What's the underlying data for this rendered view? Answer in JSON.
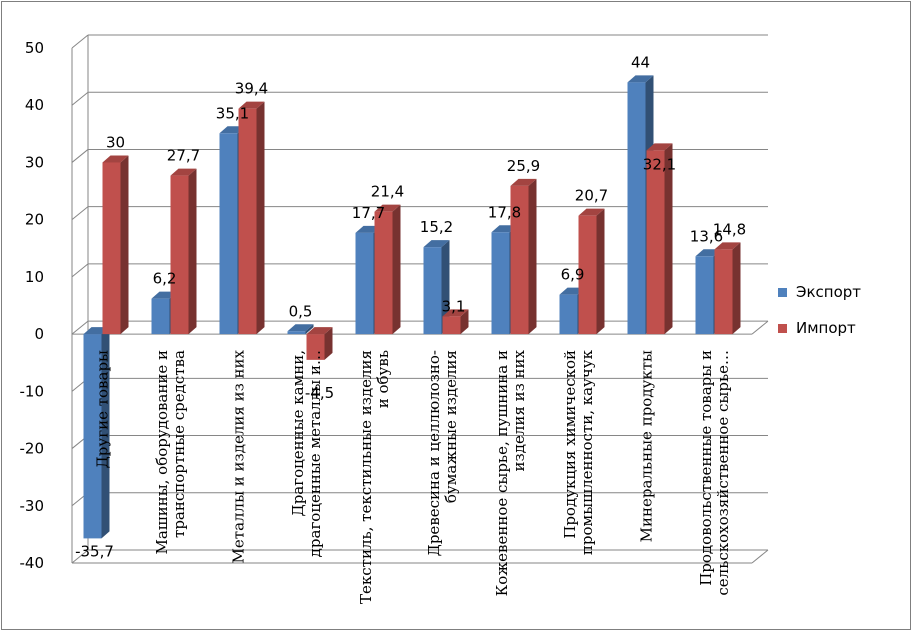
{
  "chart_data": {
    "type": "bar",
    "title": "",
    "xlabel": "",
    "ylabel": "",
    "ylim": [
      -40,
      50
    ],
    "yticks": [
      -40,
      -30,
      -20,
      -10,
      0,
      10,
      20,
      30,
      40,
      50
    ],
    "grid": true,
    "legend_position": "right",
    "categories": [
      "Другие товары",
      "Машины, оборудование и транспортные средства",
      "Металлы и изделия из них",
      "Драгоценные камни, драгоценные металлы и…",
      "Текстиль, текстильные изделия и обувь",
      "Древесина и целлюлозно-бумажные изделия",
      "Кожевенное сырье, пушнина и изделия из них",
      "Продукция химической промышленности, каучук",
      "Минеральные продукты",
      "Продовольственные товары и сельскохозяйственное сырье…"
    ],
    "category_lines": [
      [
        "Другие товары"
      ],
      [
        "Машины, оборудование и",
        "транспортные средства"
      ],
      [
        "Металлы и изделия из них"
      ],
      [
        "Драгоценные камни,",
        "драгоценные металлы и…"
      ],
      [
        "Текстиль, текстильные изделия",
        "и обувь"
      ],
      [
        "Древесина и целлюлозно-",
        "бумажные изделия"
      ],
      [
        "Кожевенное сырье, пушнина и",
        "изделия из них"
      ],
      [
        "Продукция химической",
        "промышленности, каучук"
      ],
      [
        "Минеральные продукты"
      ],
      [
        "Продовольственные товары и",
        "сельскохозяйственное сырье…"
      ]
    ],
    "series": [
      {
        "name": "Экспорт",
        "color": "#4F81BD",
        "values": [
          -35.7,
          6.2,
          35.1,
          0.5,
          17.7,
          15.2,
          17.8,
          6.9,
          44,
          13.6
        ],
        "labels": [
          "-35,7",
          "6,2",
          "35,1",
          "0,5",
          "17,7",
          "15,2",
          "17,8",
          "6,9",
          "44",
          "13,6"
        ]
      },
      {
        "name": "Импорт",
        "color": "#C0504D",
        "values": [
          30,
          27.7,
          39.4,
          -4.5,
          21.4,
          3.1,
          25.9,
          20.7,
          32.1,
          14.8
        ],
        "labels": [
          "30",
          "27,7",
          "39,4",
          "-4,5",
          "21,4",
          "3,1",
          "25,9",
          "20,7",
          "32,1",
          "14,8"
        ]
      }
    ]
  }
}
